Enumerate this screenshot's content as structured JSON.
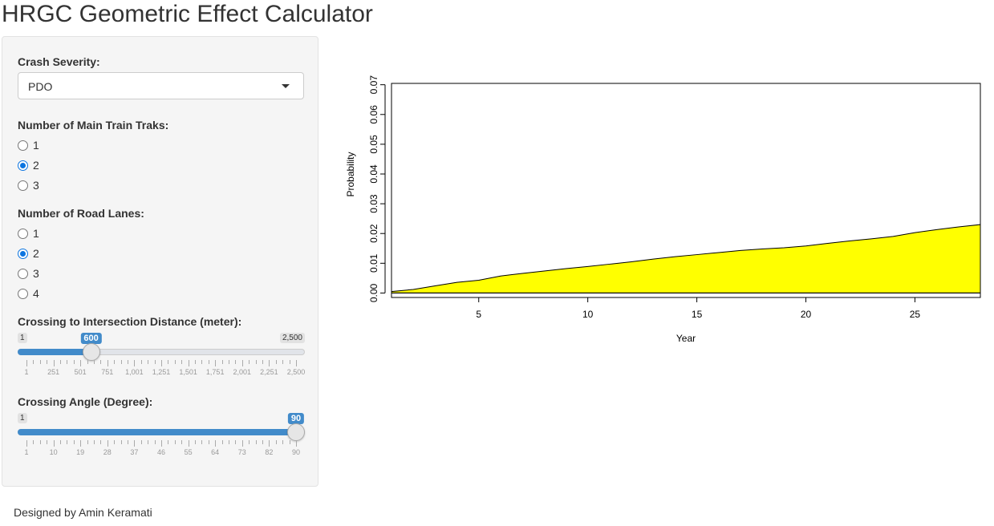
{
  "app": {
    "title": "HRGC Geometric Effect Calculator"
  },
  "sidebar": {
    "crash_severity": {
      "label": "Crash Severity:",
      "selected": "PDO"
    },
    "main_tracks": {
      "label": "Number of Main Train Traks:",
      "options": [
        "1",
        "2",
        "3"
      ],
      "selected": "2"
    },
    "road_lanes": {
      "label": "Number of Road Lanes:",
      "options": [
        "1",
        "2",
        "3",
        "4"
      ],
      "selected": "2"
    },
    "distance": {
      "label": "Crossing to Intersection Distance (meter):",
      "min_label": "1",
      "max_label": "2,500",
      "value_label": "600",
      "min": 1,
      "max": 2500,
      "value": 600,
      "tick_labels": [
        "1",
        "251",
        "501",
        "751",
        "1,001",
        "1,251",
        "1,501",
        "1,751",
        "2,001",
        "2,251",
        "2,500"
      ]
    },
    "angle": {
      "label": "Crossing Angle (Degree):",
      "min_label": "1",
      "max_label": "90",
      "value_label": "90",
      "min": 1,
      "max": 90,
      "value": 90,
      "tick_labels": [
        "1",
        "10",
        "19",
        "28",
        "37",
        "46",
        "55",
        "64",
        "73",
        "82",
        "90"
      ]
    }
  },
  "footer": {
    "text": "Designed by Amin Keramati"
  },
  "chart_data": {
    "type": "area",
    "xlabel": "Year",
    "ylabel": "Probability",
    "xlim": [
      1,
      28
    ],
    "ylim": [
      0,
      0.07
    ],
    "xticks": [
      "5",
      "10",
      "15",
      "20",
      "25"
    ],
    "yticks": [
      "0.00",
      "0.01",
      "0.02",
      "0.03",
      "0.04",
      "0.05",
      "0.06",
      "0.07"
    ],
    "fill_color": "#ffff00",
    "x": [
      1,
      2,
      3,
      4,
      5,
      6,
      7,
      8,
      9,
      10,
      11,
      12,
      13,
      14,
      15,
      16,
      17,
      18,
      19,
      20,
      21,
      22,
      23,
      24,
      25,
      26,
      27,
      28
    ],
    "y": [
      0.0005,
      0.0012,
      0.0024,
      0.0036,
      0.0043,
      0.0057,
      0.0066,
      0.0074,
      0.0082,
      0.0089,
      0.0097,
      0.0105,
      0.0114,
      0.0122,
      0.0129,
      0.0136,
      0.0143,
      0.0148,
      0.0152,
      0.0158,
      0.0167,
      0.0175,
      0.0182,
      0.019,
      0.0203,
      0.0213,
      0.0222,
      0.023
    ]
  }
}
